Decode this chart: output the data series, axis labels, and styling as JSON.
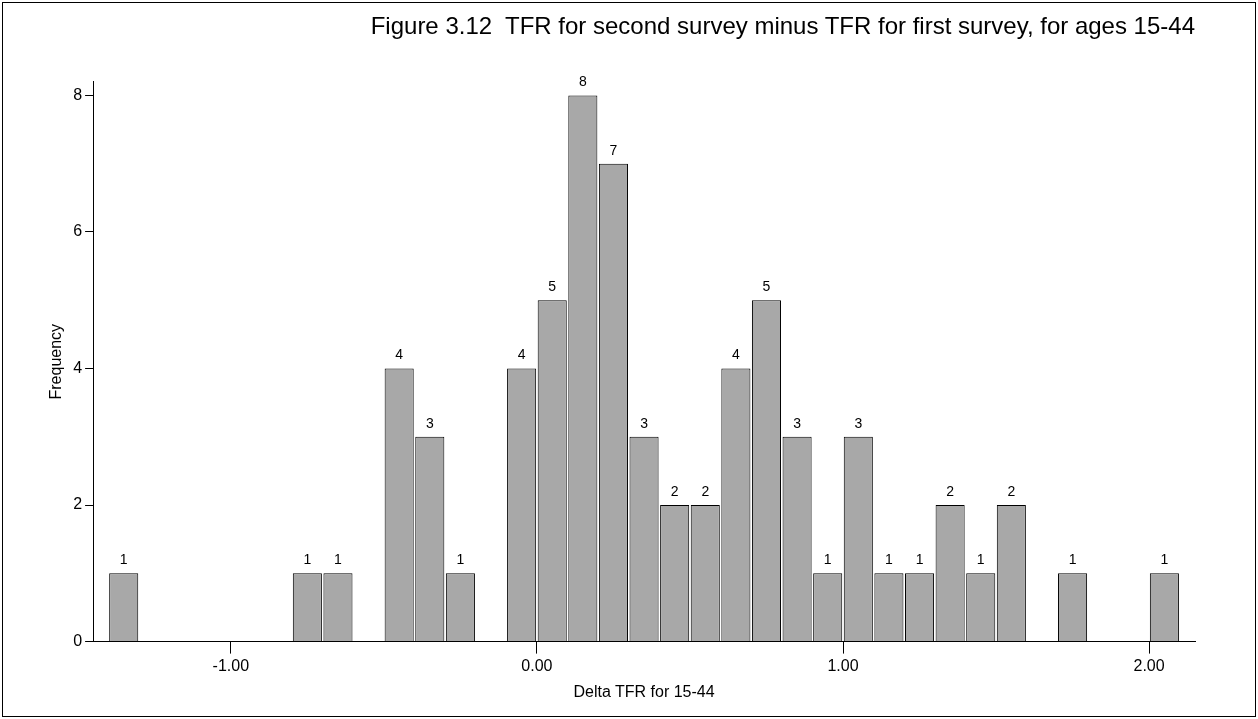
{
  "chart_data": {
    "type": "histogram",
    "title": "Figure 3.12  TFR for second survey minus TFR for first survey, for ages 15-44",
    "xlabel": "Delta TFR for 15-44",
    "ylabel": "Frequency",
    "bins": [
      -1.4,
      -1.3,
      -1.2,
      -1.1,
      -1.0,
      -0.9,
      -0.8,
      -0.7,
      -0.6,
      -0.5,
      -0.4,
      -0.3,
      -0.2,
      -0.1,
      0.0,
      0.1,
      0.2,
      0.3,
      0.4,
      0.5,
      0.6,
      0.7,
      0.8,
      0.9,
      1.0,
      1.1,
      1.2,
      1.3,
      1.4,
      1.5,
      1.6,
      1.7,
      1.8,
      1.9,
      2.0,
      2.1
    ],
    "values": [
      1,
      0,
      0,
      0,
      0,
      0,
      1,
      1,
      0,
      4,
      3,
      1,
      0,
      4,
      5,
      8,
      7,
      3,
      2,
      2,
      4,
      5,
      3,
      1,
      3,
      1,
      1,
      2,
      1,
      2,
      0,
      1,
      0,
      0,
      1
    ],
    "value_labels": [
      "1",
      null,
      null,
      null,
      null,
      null,
      "1",
      "1",
      null,
      "4",
      "3",
      "1",
      null,
      "4",
      "5",
      "8",
      "7",
      "3",
      "2",
      "2",
      "4",
      "5",
      "3",
      "1",
      "3",
      "1",
      "1",
      "2",
      "1",
      "2",
      null,
      "1",
      null,
      null,
      "1"
    ],
    "color": "#a8a8a8",
    "xlim": [
      -1.45,
      2.15
    ],
    "xticks": [
      {
        "value": -1,
        "label": "-1.00"
      },
      {
        "value": 0,
        "label": "0.00"
      },
      {
        "value": 1,
        "label": "1.00"
      },
      {
        "value": 2,
        "label": "2.00"
      }
    ],
    "ylim": [
      0,
      8.2
    ],
    "yticks": [
      0,
      2,
      4,
      6,
      8
    ],
    "grid": false,
    "legend": false
  }
}
